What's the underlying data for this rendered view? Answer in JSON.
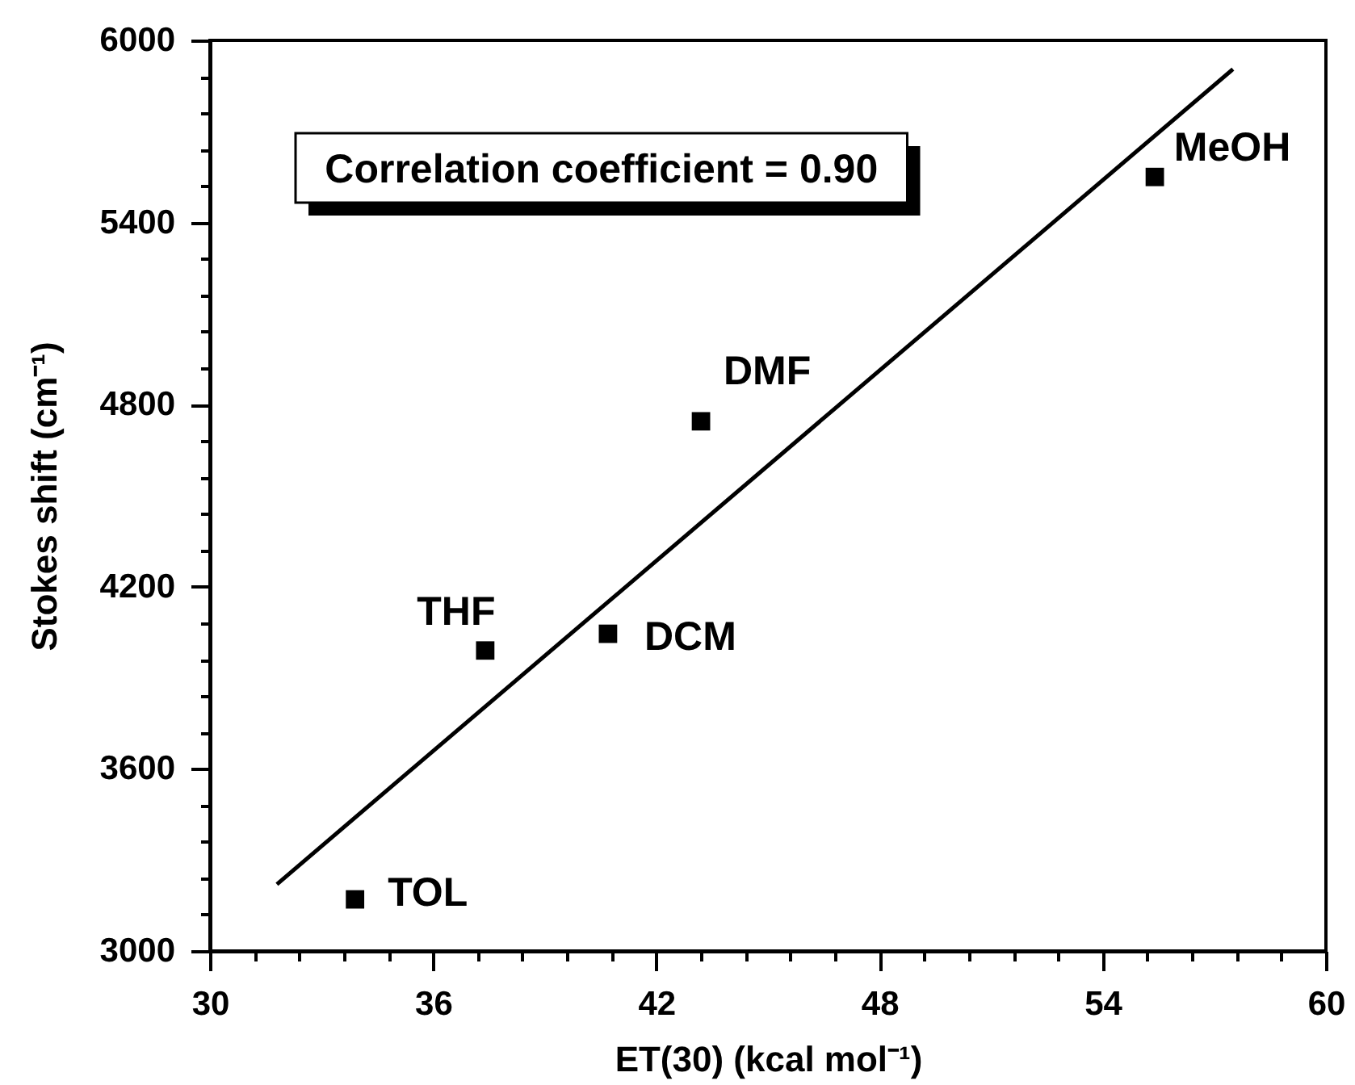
{
  "chart_data": {
    "type": "scatter",
    "xlabel": "ET(30) (kcal mol⁻¹)",
    "ylabel": "Stokes shift (cm⁻¹)",
    "series": [
      {
        "color": "#000000",
        "x": [
          33.9,
          37.4,
          40.7,
          43.2,
          55.4
        ],
        "values": [
          3170,
          3990,
          4045,
          4745,
          5550
        ]
      },
      {
        "type": "line",
        "color": "#000000",
        "marker": "none",
        "x": [
          31.8,
          57.5
        ],
        "values": [
          3220,
          5905
        ]
      }
    ],
    "marker": "square",
    "line_style": "solid",
    "grid": false,
    "xlim": [
      30,
      60
    ],
    "ylim": [
      3000,
      6000
    ],
    "xticks": [
      30,
      {
        "value": 31.2,
        "label": null
      },
      {
        "value": 32.4,
        "label": null
      },
      {
        "value": 33.6,
        "label": null
      },
      {
        "value": 34.8,
        "label": null
      },
      36,
      {
        "value": 37.2,
        "label": null
      },
      {
        "value": 38.4,
        "label": null
      },
      {
        "value": 39.6,
        "label": null
      },
      {
        "value": 40.8,
        "label": null
      },
      42,
      {
        "value": 43.2,
        "label": null
      },
      {
        "value": 44.4,
        "label": null
      },
      {
        "value": 45.6,
        "label": null
      },
      {
        "value": 46.8,
        "label": null
      },
      48,
      {
        "value": 49.2,
        "label": null
      },
      {
        "value": 50.4,
        "label": null
      },
      {
        "value": 51.6,
        "label": null
      },
      {
        "value": 52.8,
        "label": null
      },
      54,
      {
        "value": 55.2,
        "label": null
      },
      {
        "value": 56.4,
        "label": null
      },
      {
        "value": 57.6,
        "label": null
      },
      {
        "value": 58.8,
        "label": null
      },
      60
    ],
    "yticks": [
      3000,
      {
        "value": 3120,
        "label": null
      },
      {
        "value": 3240,
        "label": null
      },
      {
        "value": 3360,
        "label": null
      },
      {
        "value": 3480,
        "label": null
      },
      3600,
      {
        "value": 3720,
        "label": null
      },
      {
        "value": 3840,
        "label": null
      },
      {
        "value": 3960,
        "label": null
      },
      {
        "value": 4080,
        "label": null
      },
      4200,
      {
        "value": 4320,
        "label": null
      },
      {
        "value": 4440,
        "label": null
      },
      {
        "value": 4560,
        "label": null
      },
      {
        "value": 4680,
        "label": null
      },
      4800,
      {
        "value": 4920,
        "label": null
      },
      {
        "value": 5040,
        "label": null
      },
      {
        "value": 5160,
        "label": null
      },
      {
        "value": 5280,
        "label": null
      },
      5400,
      {
        "value": 5520,
        "label": null
      },
      {
        "value": 5640,
        "label": null
      },
      {
        "value": 5760,
        "label": null
      },
      {
        "value": 5880,
        "label": null
      },
      6000
    ],
    "annotations": [
      "Correlation coefficient = 0.90",
      {
        "text": "TOL",
        "x": 33.9,
        "y": 3170
      },
      {
        "text": "THF",
        "x": 37.4,
        "y": 3990
      },
      {
        "text": "DCM",
        "x": 40.7,
        "y": 4045
      },
      {
        "text": "DMF",
        "x": 43.2,
        "y": 4745
      },
      {
        "text": "MeOH",
        "x": 55.4,
        "y": 5550
      }
    ]
  }
}
